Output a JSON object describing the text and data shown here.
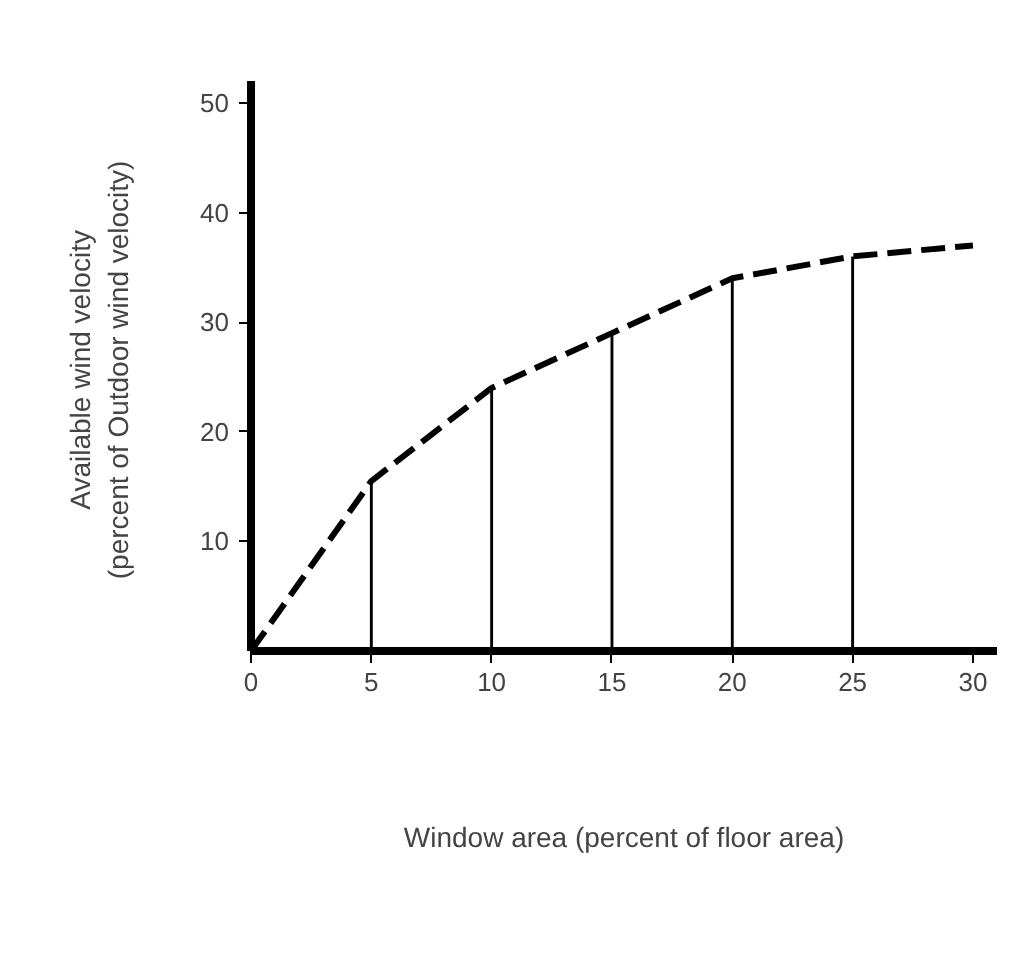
{
  "chart_data": {
    "type": "line",
    "annotations": [
      "Window area (percent of floor area)"
    ],
    "ylabel": "Available  wind velocity\n(percent of  Outdoor wind velocity)",
    "x": [
      0,
      5,
      10,
      15,
      20,
      25,
      30
    ],
    "series": [
      {
        "color": "#000000",
        "line_style": "dashed",
        "values": [
          0,
          15.5,
          24,
          29,
          34,
          36,
          37
        ]
      },
      {
        "type": "bar",
        "color": "#000000",
        "x": [
          5,
          10,
          15,
          20,
          25
        ],
        "values": [
          15.5,
          24,
          29,
          34,
          36
        ]
      }
    ],
    "xlim": [
      0,
      31
    ],
    "ylim": [
      0,
      52
    ],
    "xticks": [
      0,
      5,
      10,
      15,
      20,
      25,
      30
    ],
    "yticks": [
      10,
      20,
      30,
      40,
      50
    ],
    "grid": false
  }
}
